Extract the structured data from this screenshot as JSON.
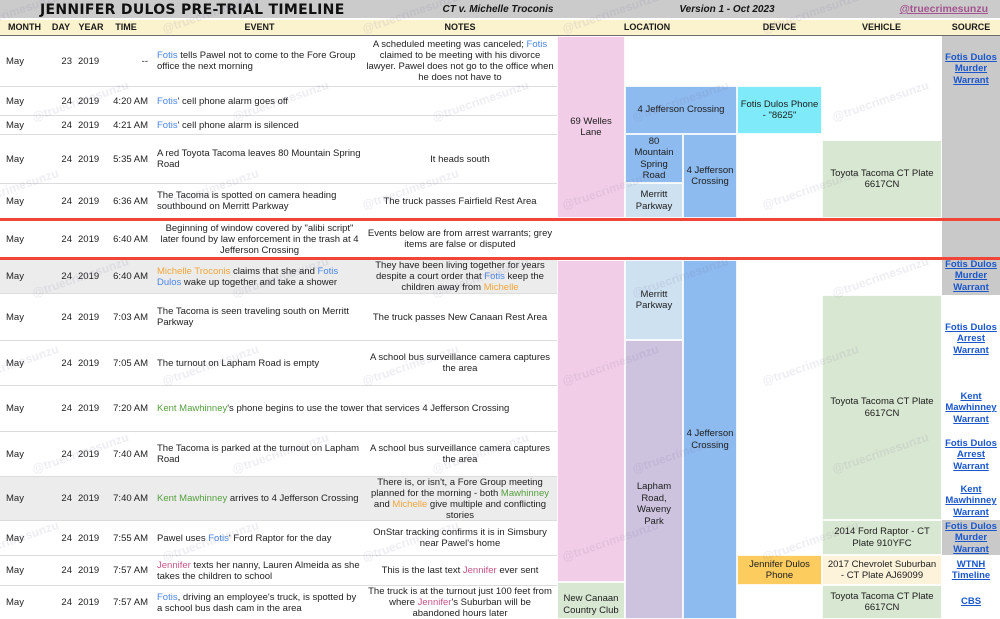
{
  "header": {
    "title": "JENNIFER DULOS PRE-TRIAL TIMELINE",
    "case": "CT v. Michelle Troconis",
    "version": "Version 1 - Oct 2023",
    "handle": "@truecrimesunzu"
  },
  "columns": [
    "MONTH",
    "DAY",
    "YEAR",
    "TIME",
    "EVENT",
    "NOTES",
    "LOCATION",
    "DEVICE",
    "VEHICLE",
    "SOURCE"
  ],
  "watermark": "@truecrimesunzu",
  "colors": {
    "accent_red": "#F04537",
    "link_blue": "#1A56CC",
    "handle_purple": "#A4548E",
    "fotis_blue": "#4A86E8",
    "michelle_orange": "#F2A63B",
    "kent_green": "#56A03F",
    "jennifer_pink": "#C75389",
    "location_pink": "#F2CDE7",
    "location_blue": "#8DBAEF",
    "location_lightblue": "#CDE1F1",
    "location_lavender": "#CDC3DF",
    "device_cyan": "#7FEBFA",
    "device_orange": "#FCCC5F",
    "vehicle_green": "#D8E7D1",
    "vehicle_cream": "#FCF3DA",
    "source_grey": "#C9C9C9",
    "header_cream": "#FBF2CE",
    "titlebar_grey": "#CBCBCB",
    "disputed_grey": "#ECECEC"
  },
  "rows": [
    {
      "month": "May",
      "day": "23",
      "year": "2019",
      "time": "--",
      "e": [
        [
          "fotis",
          "Fotis"
        ],
        [
          "",
          " tells Pawel not to come to the Fore Group office the next morning"
        ]
      ],
      "n": [
        [
          "",
          "A scheduled meeting was canceled; "
        ],
        [
          "fotis",
          "Fotis"
        ],
        [
          "",
          " claimed to be meeting with his divorce lawyer. Pawel does not go to the office when he does not have to"
        ]
      ]
    },
    {
      "month": "May",
      "day": "24",
      "year": "2019",
      "time": "4:20 AM",
      "e": [
        [
          "fotis",
          "Fotis"
        ],
        [
          "",
          "' cell phone alarm goes off"
        ]
      ],
      "n": []
    },
    {
      "month": "May",
      "day": "24",
      "year": "2019",
      "time": "4:21 AM",
      "e": [
        [
          "fotis",
          "Fotis"
        ],
        [
          "",
          "' cell phone alarm is silenced"
        ]
      ],
      "n": []
    },
    {
      "month": "May",
      "day": "24",
      "year": "2019",
      "time": "5:35 AM",
      "e": [
        [
          "",
          "A red Toyota Tacoma leaves 80 Mountain Spring Road"
        ]
      ],
      "n": [
        [
          "",
          "It heads south"
        ]
      ]
    },
    {
      "month": "May",
      "day": "24",
      "year": "2019",
      "time": "6:36 AM",
      "e": [
        [
          "",
          "The Tacoma is spotted on camera heading southbound on Merritt Parkway"
        ]
      ],
      "n": [
        [
          "",
          "The truck passes Fairfield Rest Area"
        ]
      ]
    },
    {
      "month": "May",
      "day": "24",
      "year": "2019",
      "time": "6:40 AM",
      "e": [
        [
          "",
          "Beginning of window covered by \"alibi script\" later found by law enforcement in the trash at 4 Jefferson Crossing"
        ]
      ],
      "n": [
        [
          "",
          "Events below are from arrest warrants; grey items are false or disputed"
        ]
      ]
    },
    {
      "month": "May",
      "day": "24",
      "year": "2019",
      "time": "6:40 AM",
      "e": [
        [
          "michelle",
          "Michelle Troconis"
        ],
        [
          "",
          " claims that she and "
        ],
        [
          "fotis",
          "Fotis Dulos"
        ],
        [
          "",
          " wake up together and take a shower"
        ]
      ],
      "n": [
        [
          "",
          "They have been living together for years despite a court order that "
        ],
        [
          "fotis",
          "Fotis"
        ],
        [
          "",
          " keep the children away from "
        ],
        [
          "michelle",
          "Michelle"
        ]
      ]
    },
    {
      "month": "May",
      "day": "24",
      "year": "2019",
      "time": "7:03 AM",
      "e": [
        [
          "",
          "The Tacoma is seen traveling south on Merritt Parkway"
        ]
      ],
      "n": [
        [
          "",
          "The truck passes New Canaan Rest Area"
        ]
      ]
    },
    {
      "month": "May",
      "day": "24",
      "year": "2019",
      "time": "7:05 AM",
      "e": [
        [
          "",
          "The turnout on Lapham Road is empty"
        ]
      ],
      "n": [
        [
          "",
          "A school bus surveillance camera captures the area"
        ]
      ]
    },
    {
      "month": "May",
      "day": "24",
      "year": "2019",
      "time": "7:20 AM",
      "e": [
        [
          "kent",
          "Kent Mawhinney"
        ],
        [
          "",
          "'s phone begins to use the tower that services 4 Jefferson Crossing"
        ]
      ],
      "n": []
    },
    {
      "month": "May",
      "day": "24",
      "year": "2019",
      "time": "7:40 AM",
      "e": [
        [
          "",
          "The Tacoma is parked at the turnout on Lapham Road"
        ]
      ],
      "n": [
        [
          "",
          "A school bus surveillance camera captures the area"
        ]
      ]
    },
    {
      "month": "May",
      "day": "24",
      "year": "2019",
      "time": "7:40 AM",
      "e": [
        [
          "kent",
          "Kent Mawhinney"
        ],
        [
          "",
          " arrives to 4 Jefferson Crossing"
        ]
      ],
      "n": [
        [
          "",
          "There is, or isn't, a Fore Group meeting planned for the morning - both "
        ],
        [
          "kent",
          "Mawhinney"
        ],
        [
          "",
          " and "
        ],
        [
          "michelle",
          "Michelle"
        ],
        [
          "",
          " give multiple and conflicting stories"
        ]
      ]
    },
    {
      "month": "May",
      "day": "24",
      "year": "2019",
      "time": "7:55 AM",
      "e": [
        [
          "",
          "Pawel uses "
        ],
        [
          "fotis",
          "Fotis"
        ],
        [
          "",
          "' Ford Raptor for the day"
        ]
      ],
      "n": [
        [
          "",
          "OnStar tracking confirms it is in Simsbury near Pawel's home"
        ]
      ]
    },
    {
      "month": "May",
      "day": "24",
      "year": "2019",
      "time": "7:57 AM",
      "e": [
        [
          "jennifer",
          "Jennifer"
        ],
        [
          "",
          " texts her nanny, Lauren Almeida as she takes the children to school"
        ]
      ],
      "n": [
        [
          "",
          "This is the last text "
        ],
        [
          "jennifer",
          "Jennifer"
        ],
        [
          "",
          " ever sent"
        ]
      ]
    },
    {
      "month": "May",
      "day": "24",
      "year": "2019",
      "time": "7:57 AM",
      "e": [
        [
          "fotis",
          "Fotis"
        ],
        [
          "",
          ", driving an employee's truck, is spotted by a school bus dash cam in the area"
        ]
      ],
      "n": [
        [
          "",
          "The truck is at the turnout just 100 feet from where "
        ],
        [
          "jennifer",
          "Jennifer"
        ],
        [
          "",
          "'s Suburban will be abandoned hours later"
        ]
      ]
    }
  ],
  "blocks": {
    "loc-69-welles": {
      "label": "69 Welles Lane",
      "color": "pink"
    },
    "loc-69-welles-cont": {
      "label": "",
      "color": "pink"
    },
    "loc-new-canaan": {
      "label": "New Canaan Country Club",
      "color": "green"
    },
    "loc-4jc-top": {
      "label": "4 Jefferson Crossing",
      "color": "blue"
    },
    "loc-80-mountain": {
      "label": "80 Mountain Spring Road",
      "color": "blue"
    },
    "loc-merritt-1": {
      "label": "Merritt Parkway",
      "color": "lightblue"
    },
    "loc-merritt-2": {
      "label": "Merritt Parkway",
      "color": "lightblue"
    },
    "loc-lapham": {
      "label": "Lapham Road, Waveny Park",
      "color": "lavender"
    },
    "loc-4jc-mid": {
      "label": "4 Jefferson Crossing",
      "color": "blue"
    },
    "loc-4jc-bottom": {
      "label": "4 Jefferson Crossing",
      "color": "blue"
    },
    "dev-fotis-phone": {
      "label": "Fotis Dulos Phone - \"8625\"",
      "color": "cyan"
    },
    "dev-jennifer-phone": {
      "label": "Jennifer Dulos Phone",
      "color": "orange"
    },
    "veh-tacoma-1": {
      "label": "Toyota Tacoma CT Plate 6617CN",
      "color": "green"
    },
    "veh-tacoma-2": {
      "label": "Toyota Tacoma CT Plate 6617CN",
      "color": "green"
    },
    "veh-raptor": {
      "label": "2014 Ford Raptor - CT Plate 910YFC",
      "color": "green"
    },
    "veh-suburban": {
      "label": "2017 Chevrolet Suburban - CT Plate AJ69099",
      "color": "cream"
    },
    "veh-tacoma-3": {
      "label": "Toyota Tacoma CT Plate 6617CN",
      "color": "green"
    },
    "src-bg-top": {
      "label": "",
      "color": "grey"
    },
    "src-bg-raptor": {
      "label": "",
      "color": "grey"
    },
    "src-murder-1": {
      "label": "Fotis Dulos Murder Warrant",
      "link": true
    },
    "src-murder-2": {
      "label": "Fotis Dulos Murder Warrant",
      "link": true
    },
    "src-arrest-1": {
      "label": "Fotis Dulos Arrest Warrant",
      "link": true
    },
    "src-kent-1": {
      "label": "Kent Mawhinney Warrant",
      "link": true
    },
    "src-arrest-2": {
      "label": "Fotis Dulos Arrest Warrant",
      "link": true
    },
    "src-kent-2": {
      "label": "Kent Mawhinney Warrant",
      "link": true
    },
    "src-murder-3": {
      "label": "Fotis Dulos Murder Warrant",
      "link": true
    },
    "src-wtnh": {
      "label": "WTNH Timeline",
      "link": true
    },
    "src-cbs": {
      "label": "CBS",
      "link": true
    }
  }
}
